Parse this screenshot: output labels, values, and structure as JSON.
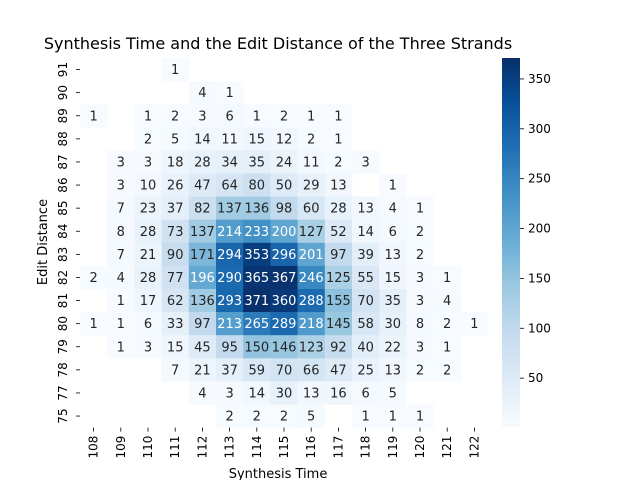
{
  "chart_data": {
    "type": "heatmap",
    "title": "Synthesis Time and the Edit Distance of the Three Strands",
    "xlabel": "Synthesis Time",
    "ylabel": "Edit Distance",
    "x_categories": [
      "108",
      "109",
      "110",
      "111",
      "112",
      "113",
      "114",
      "115",
      "116",
      "117",
      "118",
      "119",
      "120",
      "121",
      "122"
    ],
    "y_categories": [
      "91",
      "90",
      "89",
      "88",
      "87",
      "86",
      "85",
      "84",
      "83",
      "82",
      "81",
      "80",
      "79",
      "78",
      "77",
      "75"
    ],
    "values": [
      [
        null,
        null,
        null,
        1,
        null,
        null,
        null,
        null,
        null,
        null,
        null,
        null,
        null,
        null,
        null
      ],
      [
        null,
        null,
        null,
        null,
        4,
        1,
        null,
        null,
        null,
        null,
        null,
        null,
        null,
        null,
        null
      ],
      [
        1,
        null,
        1,
        2,
        3,
        6,
        1,
        2,
        1,
        1,
        null,
        null,
        null,
        null,
        null
      ],
      [
        null,
        null,
        2,
        5,
        14,
        11,
        15,
        12,
        2,
        1,
        null,
        null,
        null,
        null,
        null
      ],
      [
        null,
        3,
        3,
        18,
        28,
        34,
        35,
        24,
        11,
        2,
        3,
        null,
        null,
        null,
        null
      ],
      [
        null,
        3,
        10,
        26,
        47,
        64,
        80,
        50,
        29,
        13,
        null,
        1,
        null,
        null,
        null
      ],
      [
        null,
        7,
        23,
        37,
        82,
        137,
        136,
        98,
        60,
        28,
        13,
        4,
        1,
        null,
        null
      ],
      [
        null,
        8,
        28,
        73,
        137,
        214,
        233,
        200,
        127,
        52,
        14,
        6,
        2,
        null,
        null
      ],
      [
        null,
        7,
        21,
        90,
        171,
        294,
        353,
        296,
        201,
        97,
        39,
        13,
        2,
        null,
        null
      ],
      [
        2,
        4,
        28,
        77,
        196,
        290,
        365,
        367,
        246,
        125,
        55,
        15,
        3,
        1,
        null
      ],
      [
        null,
        1,
        17,
        62,
        136,
        293,
        371,
        360,
        288,
        155,
        70,
        35,
        3,
        4,
        null
      ],
      [
        1,
        1,
        6,
        33,
        97,
        213,
        265,
        289,
        218,
        145,
        58,
        30,
        8,
        2,
        1
      ],
      [
        null,
        1,
        3,
        15,
        45,
        95,
        150,
        146,
        123,
        92,
        40,
        22,
        3,
        1,
        null
      ],
      [
        null,
        null,
        null,
        7,
        21,
        37,
        59,
        70,
        66,
        47,
        25,
        13,
        2,
        2,
        null
      ],
      [
        null,
        null,
        null,
        null,
        4,
        3,
        14,
        30,
        13,
        16,
        6,
        5,
        null,
        null,
        null
      ],
      [
        null,
        null,
        null,
        null,
        null,
        2,
        2,
        2,
        5,
        null,
        1,
        1,
        1,
        null,
        null
      ]
    ],
    "colorbar": {
      "min": 1,
      "max": 371,
      "ticks": [
        50,
        100,
        150,
        200,
        250,
        300,
        350
      ],
      "colormap": "Blues"
    }
  }
}
